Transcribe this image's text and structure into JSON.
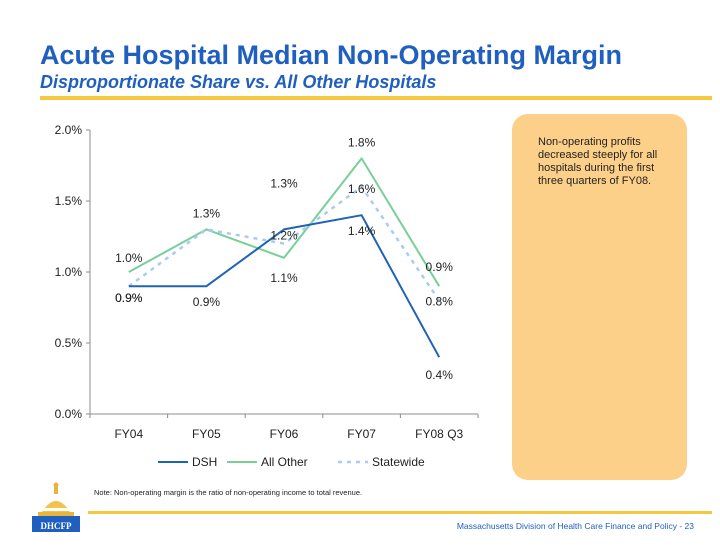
{
  "title": "Acute Hospital Median Non-Operating Margin",
  "subtitle": "Disproportionate Share vs. All Other Hospitals",
  "callout": "Non-operating profits decreased steeply for all hospitals during the first three quarters of FY08.",
  "note": "Note: Non-operating margin is the ratio of non-operating income to total revenue.",
  "footer": "Massachusetts Division of Health Care Finance and Policy - 23",
  "logo_text": "DHCFP",
  "colors": {
    "dsh": "#1f63b5",
    "all_other": "#78cf98",
    "statewide": "#a9ccf0",
    "callout": "#fdd08a",
    "rule": "#f5c842",
    "title": "#1f5fbf"
  },
  "chart_data": {
    "type": "line",
    "categories": [
      "FY04",
      "FY05",
      "FY06",
      "FY07",
      "FY08 Q3"
    ],
    "ylim": [
      0,
      2.0
    ],
    "yticks": [
      "0.0%",
      "0.5%",
      "1.0%",
      "1.5%",
      "2.0%"
    ],
    "ytick_values": [
      0,
      0.5,
      1.0,
      1.5,
      2.0
    ],
    "grid": false,
    "legend_position": "bottom",
    "series": [
      {
        "name": "DSH",
        "values": [
          0.9,
          0.9,
          1.3,
          1.4,
          0.4
        ],
        "labels": [
          "0.9%",
          "0.9%",
          "1.3%",
          "1.4%",
          "0.4%"
        ],
        "style": "solid",
        "color": "#1f63b5"
      },
      {
        "name": "All Other",
        "values": [
          1.0,
          1.3,
          1.1,
          1.8,
          0.9
        ],
        "labels": [
          "1.0%",
          "1.3%",
          "1.1%",
          "1.8%",
          "0.9%"
        ],
        "style": "solid",
        "color": "#78cf98"
      },
      {
        "name": "Statewide",
        "values": [
          0.9,
          1.3,
          1.2,
          1.6,
          0.8
        ],
        "labels": [
          "0.9%",
          "",
          "1.2%",
          "1.6%",
          "0.8%"
        ],
        "style": "dashed",
        "color": "#a9ccf0"
      }
    ]
  }
}
